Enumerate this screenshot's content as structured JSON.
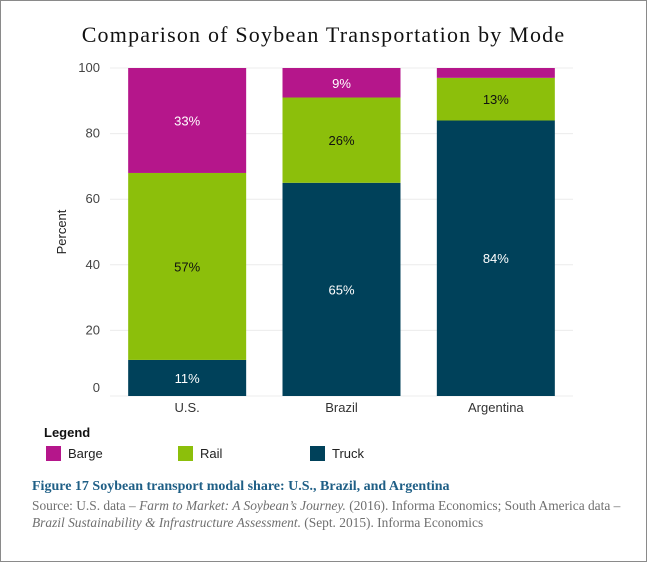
{
  "chart_data": {
    "type": "bar",
    "stacked": true,
    "title": "Comparison of Soybean Transportation by Mode",
    "ylabel": "Percent",
    "xlabel": "",
    "ylim": [
      0,
      100
    ],
    "yticks": [
      "0",
      "20",
      "40",
      "60",
      "80",
      "100"
    ],
    "categories": [
      "U.S.",
      "Brazil",
      "Argentina"
    ],
    "series": [
      {
        "name": "Truck",
        "color": "#00415a",
        "values": [
          11,
          65,
          84
        ],
        "labels": [
          "11%",
          "65%",
          "84%"
        ]
      },
      {
        "name": "Rail",
        "color": "#8cbf0b",
        "values": [
          57,
          26,
          13
        ],
        "labels": [
          "57%",
          "26%",
          "13%"
        ]
      },
      {
        "name": "Barge",
        "color": "#b5168b",
        "values": [
          33,
          9,
          3
        ],
        "labels": [
          "33%",
          "9%",
          ""
        ]
      }
    ],
    "grid": true,
    "legend_title": "Legend",
    "legend": [
      {
        "name": "Barge",
        "color": "#b5168b"
      },
      {
        "name": "Rail",
        "color": "#8cbf0b"
      },
      {
        "name": "Truck",
        "color": "#00415a"
      }
    ]
  },
  "caption": {
    "figure": "Figure 17  Soybean transport modal share: U.S., Brazil, and Argentina",
    "source_1": "Source: U.S. data – ",
    "source_title_1": "Farm to Market: A Soybean’s Journey.",
    "source_2": " (2016). Informa Economics; South America data – ",
    "source_title_2": "Brazil Sustainability & Infrastructure Assessment.",
    "source_3": " (Sept. 2015). Informa Economics"
  }
}
